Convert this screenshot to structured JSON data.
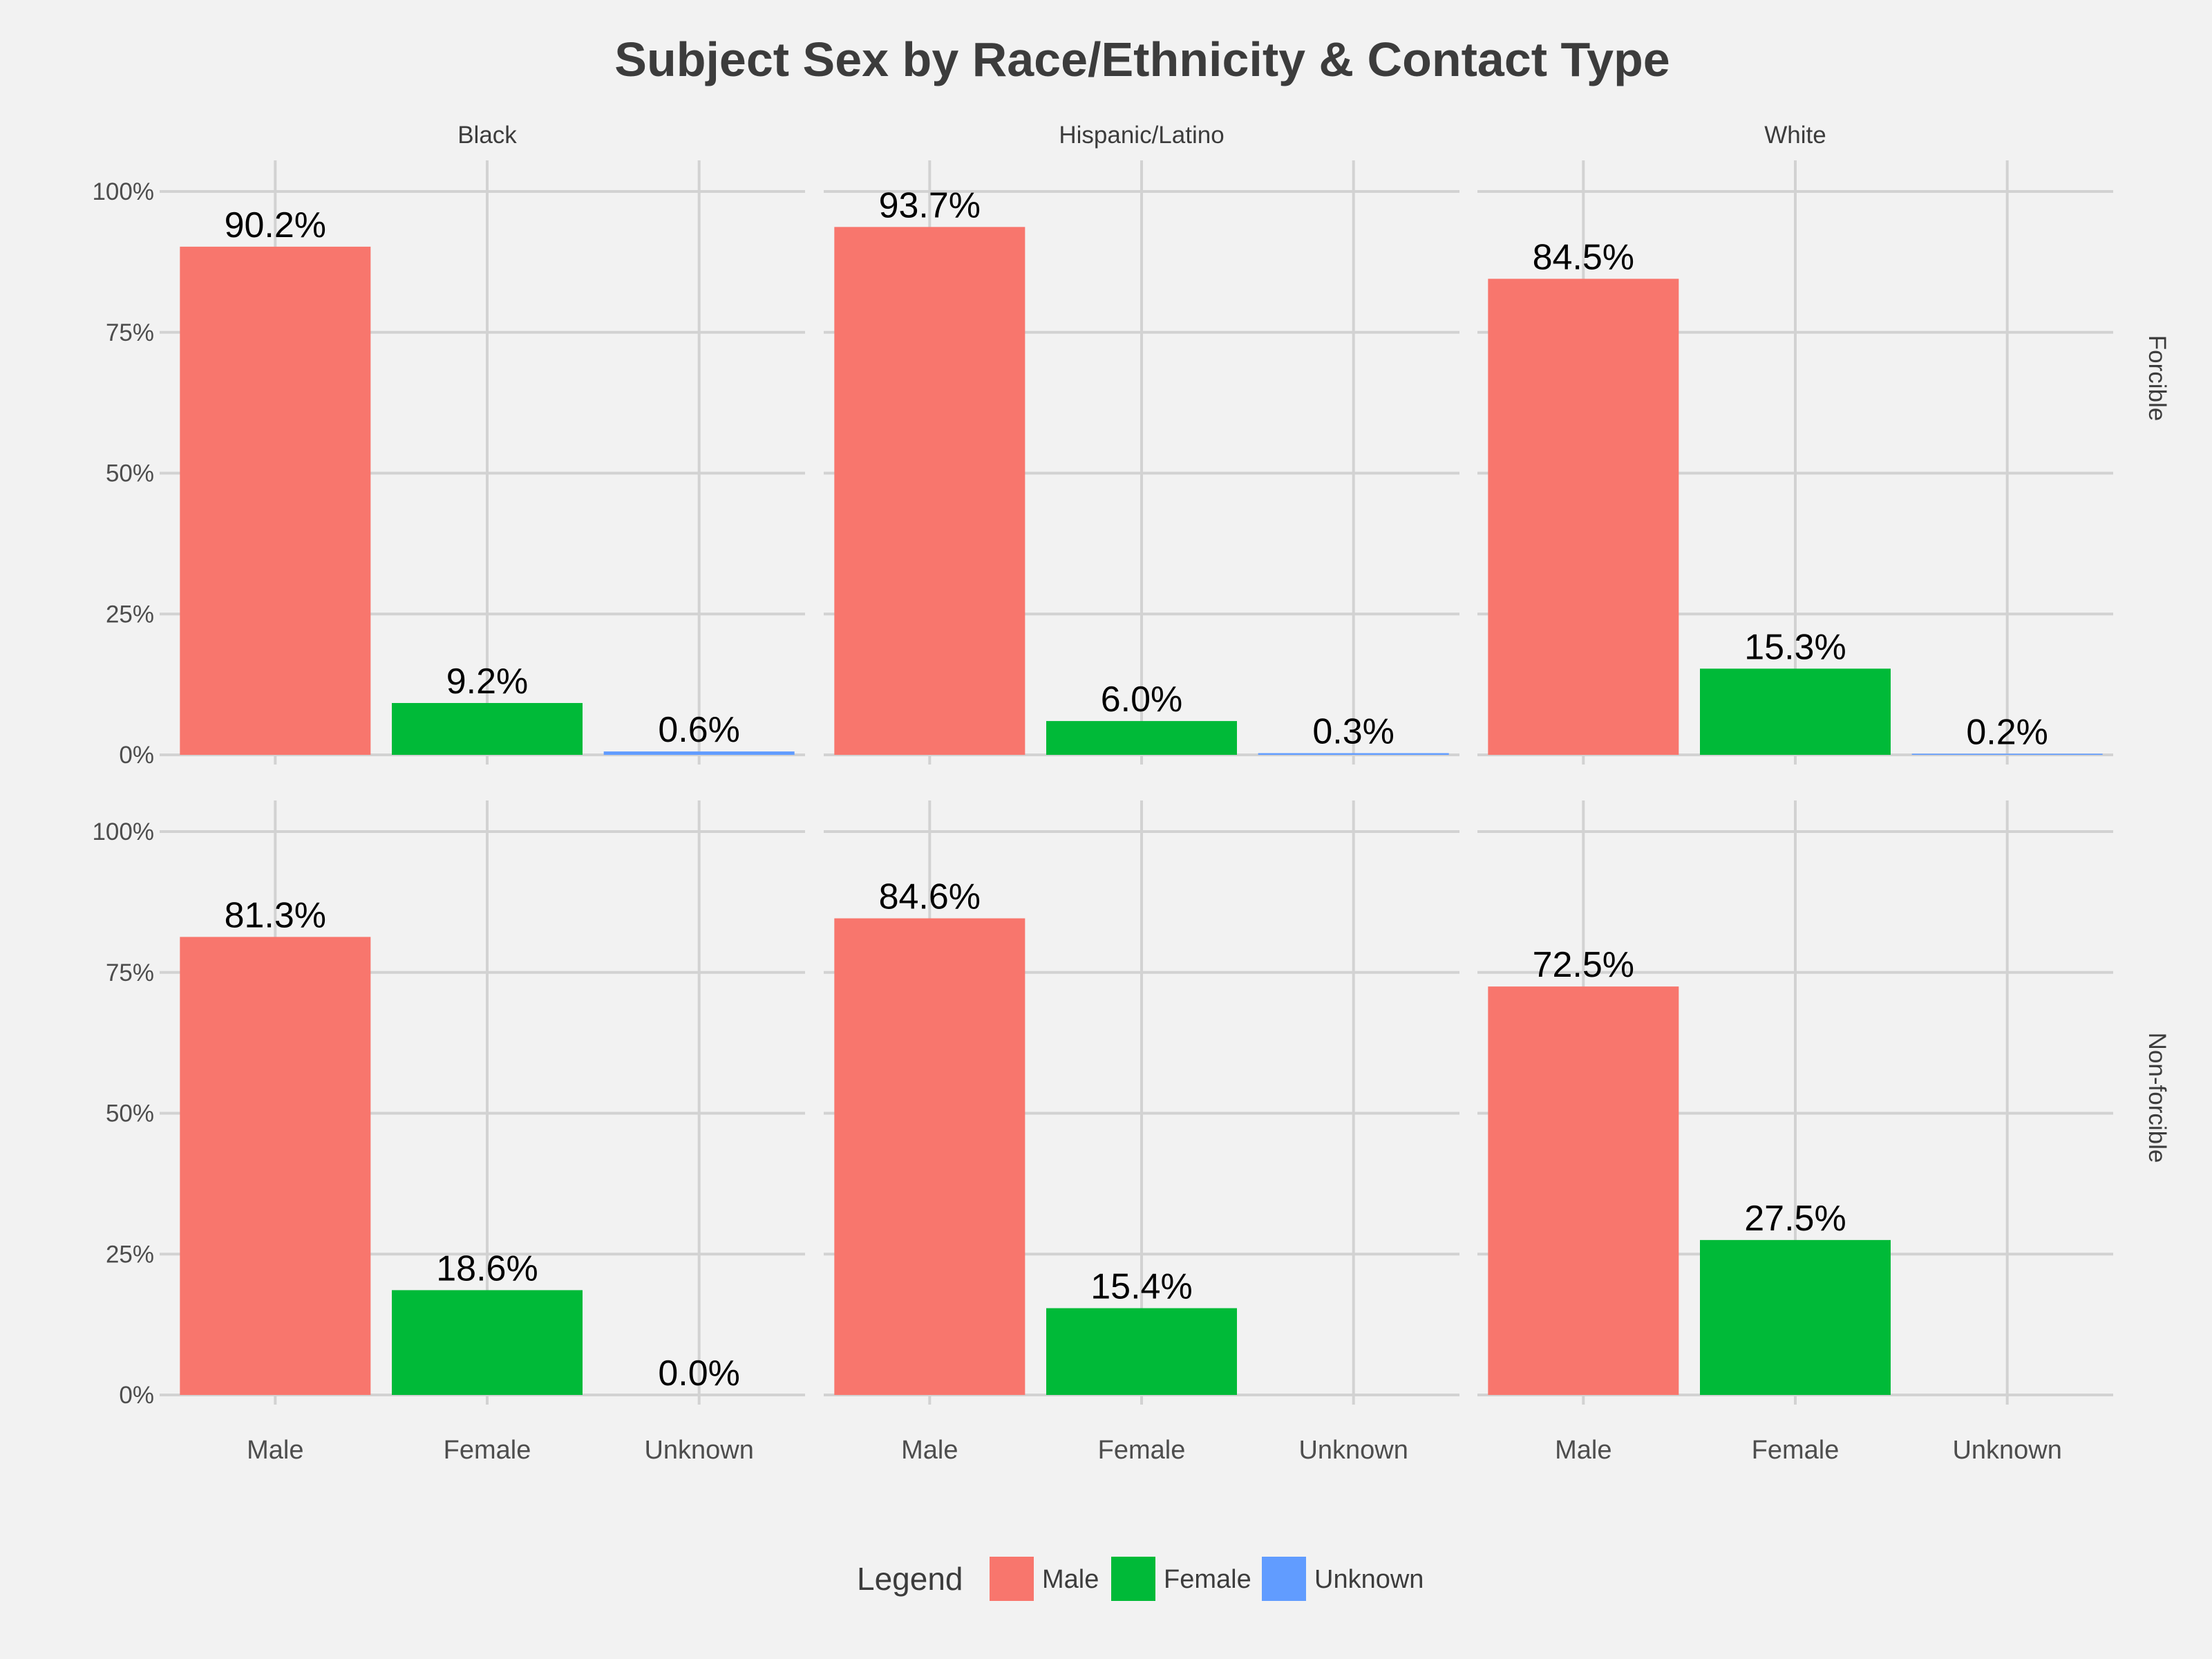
{
  "chart_data": {
    "type": "bar",
    "title": "Subject Sex by Race/Ethnicity & Contact Type",
    "categories": [
      "Male",
      "Female",
      "Unknown"
    ],
    "column_facets": [
      "Black",
      "Hispanic/Latino",
      "White"
    ],
    "row_facets": [
      "Forcible",
      "Non-forcible"
    ],
    "ylim": [
      0,
      100
    ],
    "yticks": [
      "0%",
      "25%",
      "50%",
      "75%",
      "100%"
    ],
    "ytick_values": [
      0,
      25,
      50,
      75,
      100
    ],
    "grid": true,
    "legend": {
      "title": "Legend",
      "placement": "bottom",
      "entries": [
        "Male",
        "Female",
        "Unknown"
      ]
    },
    "colors": {
      "Male": "#f8766d",
      "Female": "#00ba38",
      "Unknown": "#619cff"
    },
    "panels": [
      {
        "row": "Forcible",
        "column": "Black",
        "values": [
          90.2,
          9.2,
          0.6
        ],
        "labels": [
          "90.2%",
          "9.2%",
          "0.6%"
        ]
      },
      {
        "row": "Forcible",
        "column": "Hispanic/Latino",
        "values": [
          93.7,
          6.0,
          0.3
        ],
        "labels": [
          "93.7%",
          "6.0%",
          "0.3%"
        ]
      },
      {
        "row": "Forcible",
        "column": "White",
        "values": [
          84.5,
          15.3,
          0.2
        ],
        "labels": [
          "84.5%",
          "15.3%",
          "0.2%"
        ]
      },
      {
        "row": "Non-forcible",
        "column": "Black",
        "values": [
          81.3,
          18.6,
          0.0
        ],
        "labels": [
          "81.3%",
          "18.6%",
          "0.0%"
        ]
      },
      {
        "row": "Non-forcible",
        "column": "Hispanic/Latino",
        "values": [
          84.6,
          15.4,
          null
        ],
        "labels": [
          "84.6%",
          "15.4%",
          ""
        ]
      },
      {
        "row": "Non-forcible",
        "column": "White",
        "values": [
          72.5,
          27.5,
          null
        ],
        "labels": [
          "72.5%",
          "27.5%",
          ""
        ]
      }
    ]
  }
}
